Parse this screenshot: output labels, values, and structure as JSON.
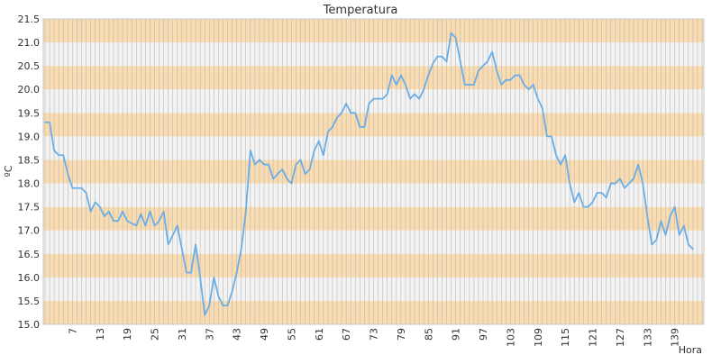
{
  "chart_data": {
    "type": "line",
    "title": "Temperatura",
    "xlabel": "Hora",
    "ylabel": "ºC",
    "xlim": [
      1,
      145
    ],
    "ylim": [
      15.0,
      21.5
    ],
    "y_ticks": [
      "15.0",
      "15.5",
      "16.0",
      "16.5",
      "17.0",
      "17.5",
      "18.0",
      "18.5",
      "19.0",
      "19.5",
      "20.0",
      "20.5",
      "21.0",
      "21.5"
    ],
    "x_ticks": [
      7,
      13,
      19,
      25,
      31,
      37,
      43,
      49,
      55,
      61,
      67,
      73,
      79,
      85,
      91,
      97,
      103,
      109,
      115,
      121,
      127,
      133,
      139
    ],
    "grid": "vertical lines every hour; alternating horizontal bands every 0.5 ºC",
    "colors": {
      "line": "#6aaee8",
      "band": "#fadcb0",
      "band_alt": "#f3f3f3",
      "grid": "#b8b8b8"
    },
    "series": [
      {
        "values": [
          19.3,
          19.3,
          18.7,
          18.6,
          18.6,
          18.2,
          17.9,
          17.9,
          17.9,
          17.8,
          17.4,
          17.6,
          17.5,
          17.3,
          17.4,
          17.2,
          17.2,
          17.4,
          17.2,
          17.15,
          17.1,
          17.35,
          17.1,
          17.4,
          17.1,
          17.2,
          17.4,
          16.7,
          16.9,
          17.1,
          16.6,
          16.1,
          16.1,
          16.7,
          16.0,
          15.2,
          15.4,
          16.0,
          15.6,
          15.4,
          15.4,
          15.7,
          16.1,
          16.6,
          17.4,
          18.7,
          18.4,
          18.5,
          18.4,
          18.4,
          18.1,
          18.2,
          18.3,
          18.1,
          18.0,
          18.4,
          18.5,
          18.2,
          18.3,
          18.7,
          18.9,
          18.6,
          19.1,
          19.2,
          19.4,
          19.5,
          19.7,
          19.5,
          19.5,
          19.2,
          19.2,
          19.7,
          19.8,
          19.8,
          19.8,
          19.9,
          20.3,
          20.1,
          20.3,
          20.1,
          19.8,
          19.9,
          19.8,
          20.0,
          20.3,
          20.55,
          20.7,
          20.7,
          20.6,
          21.2,
          21.1,
          20.6,
          20.1,
          20.1,
          20.1,
          20.4,
          20.5,
          20.6,
          20.8,
          20.4,
          20.1,
          20.2,
          20.2,
          20.3,
          20.3,
          20.1,
          20.0,
          20.1,
          19.8,
          19.6,
          19.0,
          19.0,
          18.6,
          18.4,
          18.6,
          18.0,
          17.6,
          17.8,
          17.5,
          17.5,
          17.6,
          17.8,
          17.8,
          17.7,
          18.0,
          18.0,
          18.1,
          17.9,
          18.0,
          18.1,
          18.4,
          18.0,
          17.3,
          16.7,
          16.8,
          17.2,
          16.9,
          17.3,
          17.5,
          16.9,
          17.1,
          16.7,
          16.6
        ]
      }
    ]
  }
}
